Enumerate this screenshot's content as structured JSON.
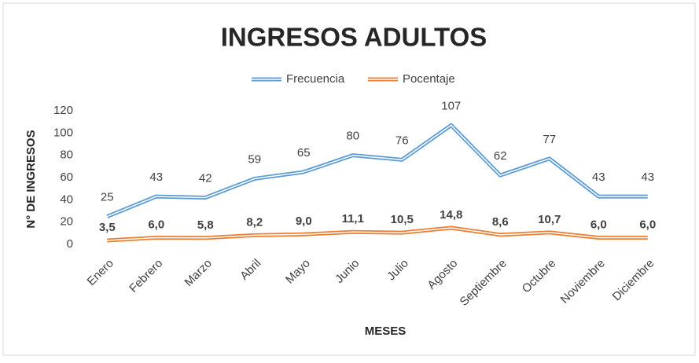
{
  "chart_data": {
    "type": "line",
    "title": "INGRESOS ADULTOS",
    "x_label": "MESES",
    "y_label": "N° DE INGRESOS",
    "categories": [
      "Enero",
      "Febrero",
      "Marzo",
      "Abril",
      "Mayo",
      "Junio",
      "Julio",
      "Agosto",
      "Septiembre",
      "Octubre",
      "Noviembre",
      "Diciembre"
    ],
    "series": [
      {
        "name": "Frecuencia",
        "color": "#5b9bd5",
        "values": [
          25,
          43,
          42,
          59,
          65,
          80,
          76,
          107,
          62,
          77,
          43,
          43
        ]
      },
      {
        "name": "Pocentaje",
        "color": "#ed7d31",
        "values": [
          3.5,
          6.0,
          5.8,
          8.2,
          9.0,
          11.1,
          10.5,
          14.8,
          8.6,
          10.7,
          6.0,
          6.0
        ],
        "value_labels": [
          "3,5",
          "6,0",
          "5,8",
          "8,2",
          "9,0",
          "11,1",
          "10,5",
          "14,8",
          "8,6",
          "10,7",
          "6,0",
          "6,0"
        ]
      }
    ],
    "ylim": [
      0,
      120
    ],
    "yticks": [
      0,
      20,
      40,
      60,
      80,
      100,
      120
    ],
    "grid": false,
    "legend": "top"
  }
}
